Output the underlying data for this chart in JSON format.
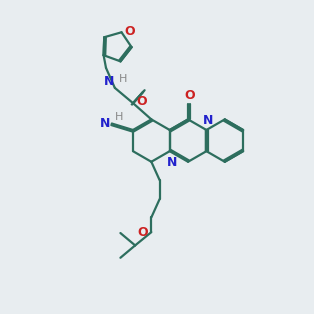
{
  "bg_color": "#e8edf0",
  "bond_color": "#2d6e5e",
  "N_color": "#2222cc",
  "O_color": "#cc2222",
  "H_color": "#888888",
  "lw": 1.6,
  "dbo": 0.055
}
